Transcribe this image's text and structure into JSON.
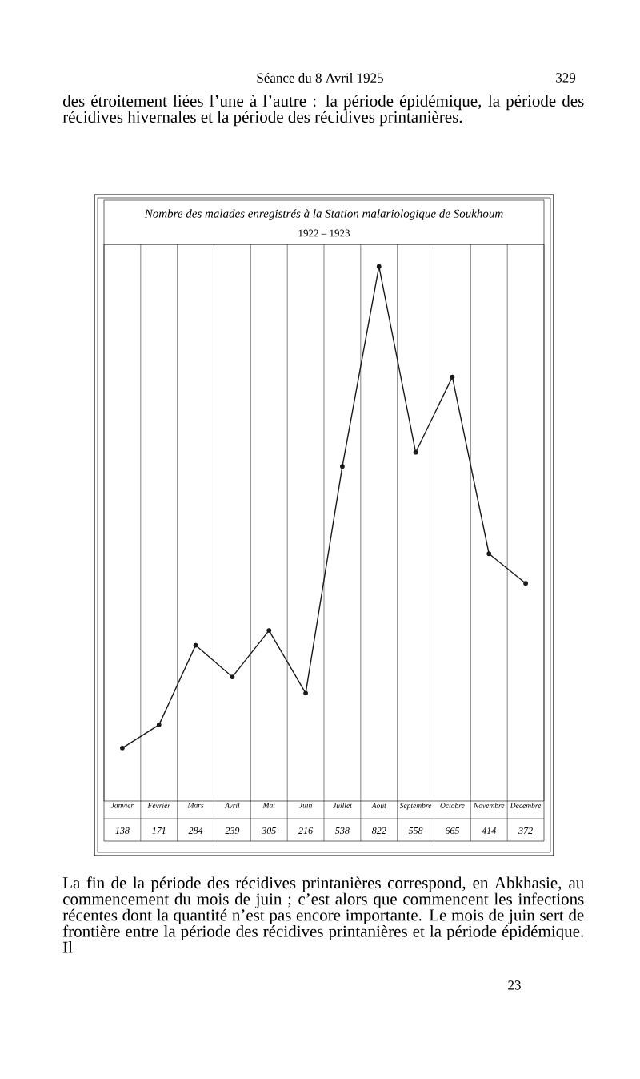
{
  "chart_data": {
    "type": "line",
    "title": "Nombre des malades enregistrés à la Station malariologique de Soukhoum",
    "subtitle": "1922 – 1923",
    "categories": [
      "Janvier",
      "Février",
      "Mars",
      "Avril",
      "Mai",
      "Juin",
      "Juillet",
      "Août",
      "Septembre",
      "Octobre",
      "Novembre",
      "Décembre"
    ],
    "series": [
      {
        "color": "#1a1a1a",
        "values": [
          138,
          171,
          284,
          239,
          305,
          216,
          538,
          822,
          558,
          665,
          414,
          372
        ]
      }
    ],
    "data_labels": true,
    "marker": "circle",
    "line_style": "solid",
    "grid": "x",
    "tick_labels": "x",
    "annotations": [
      "Séance du 8 Avril 1925",
      "329",
      "des étroitement liées l’une à l’autre : la période épidémique, la période des récidives hivernales et la période des récidives printanières.",
      "La fin de la période des récidives printanières correspond, en Abkhasie, au commencement du mois de juin ; c’est alors que commencent les infections récentes dont la quantité n’est pas encore importante. Le mois de juin sert de frontière entre la période des récidives printanières et la période épidémique. Il",
      "23"
    ]
  }
}
